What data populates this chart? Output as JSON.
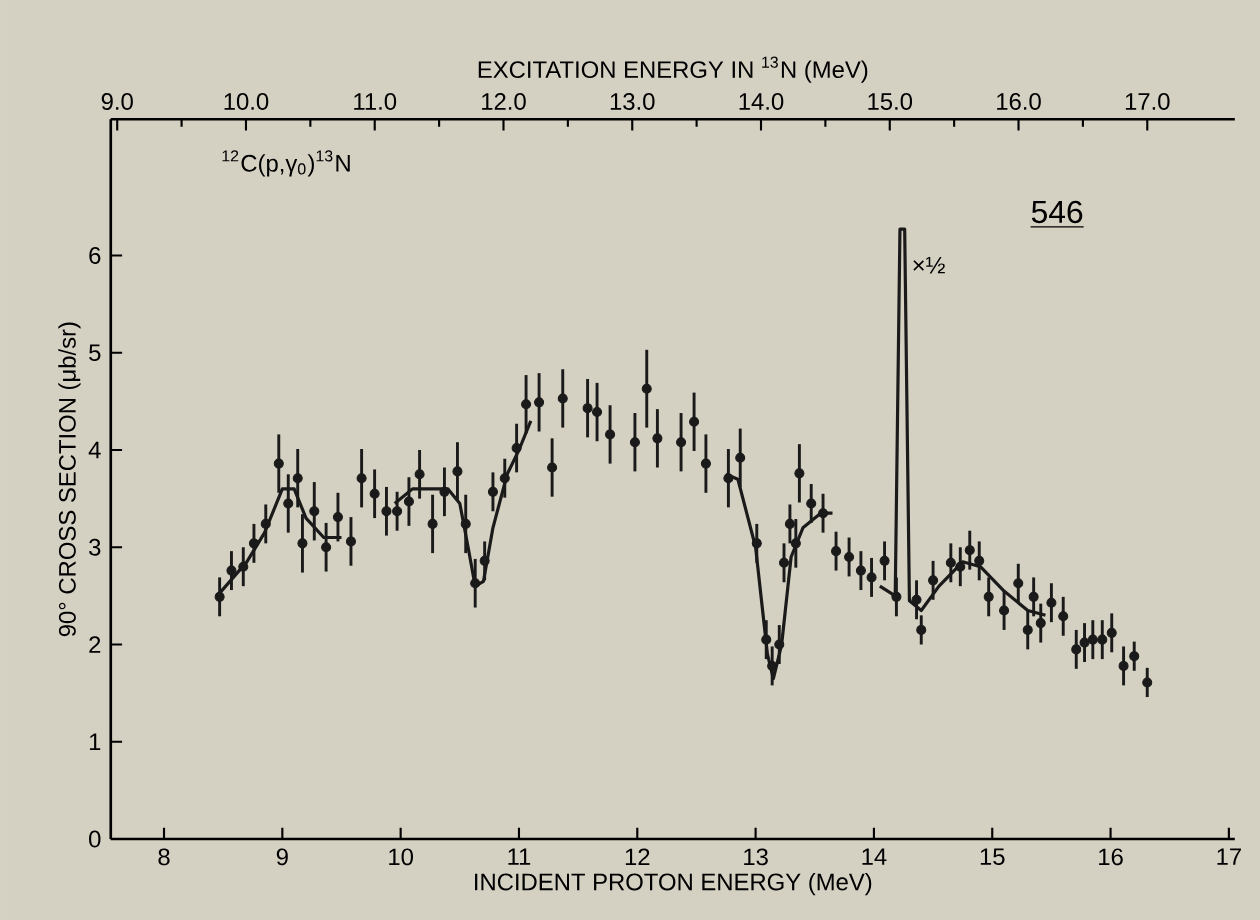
{
  "chart_data": {
    "type": "scatter",
    "xlabel": "INCIDENT PROTON ENERGY (MeV)",
    "ylabel": "90° CROSS SECTION (μb/sr)",
    "x2label": "EXCITATION ENERGY IN $^{13}$N (MeV)",
    "xlim": [
      7.55,
      17.05
    ],
    "xticks": [
      8,
      9,
      10,
      11,
      12,
      13,
      14,
      15,
      16,
      17
    ],
    "ylim": [
      0,
      7.4
    ],
    "yticks": [
      0,
      1,
      2,
      3,
      4,
      5,
      6
    ],
    "x2lim": [
      8.95,
      17.68
    ],
    "x2ticks": [
      {
        "value": 9,
        "label": "9.0"
      },
      {
        "value": 10,
        "label": "10.0"
      },
      {
        "value": 11,
        "label": "11.0"
      },
      {
        "value": 12,
        "label": "12.0"
      },
      {
        "value": 13,
        "label": "13.0"
      },
      {
        "value": 14,
        "label": "14.0"
      },
      {
        "value": 15,
        "label": "15.0"
      },
      {
        "value": 16,
        "label": "16.0"
      },
      {
        "value": 17,
        "label": "17.0"
      }
    ],
    "grid": false,
    "marker": "circle",
    "annotations": [
      "$^{12}$C(p,γ$_{0}$)$^{13}$N",
      "546",
      {
        "text": "×½",
        "x": 14.24,
        "y": 5.9
      }
    ],
    "series": [
      {
        "color": "#1a1a1a",
        "x": [
          8.47,
          8.57,
          8.67,
          8.76,
          8.86,
          8.97,
          9.05,
          9.13,
          9.17,
          9.27,
          9.37,
          9.47,
          9.58,
          9.67,
          9.78,
          9.88,
          9.97,
          10.07,
          10.16,
          10.27,
          10.37,
          10.48,
          10.55,
          10.63,
          10.71,
          10.78,
          10.88,
          10.98,
          11.06,
          11.17,
          11.28,
          11.37,
          11.58,
          11.66,
          11.77,
          11.98,
          12.08,
          12.17,
          12.37,
          12.48,
          12.58,
          12.77,
          12.87,
          13.01,
          13.09,
          13.14,
          13.2,
          13.24,
          13.29,
          13.34,
          13.37,
          13.47,
          13.57,
          13.68,
          13.79,
          13.89,
          13.98,
          14.09,
          14.19,
          14.36,
          14.4,
          14.5,
          14.65,
          14.73,
          14.81,
          14.89,
          14.97,
          15.1,
          15.22,
          15.3,
          15.35,
          15.41,
          15.5,
          15.6,
          15.71,
          15.78,
          15.85,
          15.93,
          16.01,
          16.11,
          16.2,
          16.31
        ],
        "values": [
          2.49,
          2.76,
          2.8,
          3.04,
          3.24,
          3.86,
          3.45,
          3.71,
          3.04,
          3.37,
          3.0,
          3.31,
          3.06,
          3.71,
          3.55,
          3.37,
          3.37,
          3.47,
          3.75,
          3.24,
          3.57,
          3.78,
          3.24,
          2.63,
          2.86,
          3.57,
          3.71,
          4.02,
          4.47,
          4.49,
          3.82,
          4.53,
          4.43,
          4.39,
          4.16,
          4.08,
          4.63,
          4.12,
          4.08,
          4.29,
          3.86,
          3.71,
          3.92,
          3.04,
          2.05,
          1.78,
          2.0,
          2.84,
          3.24,
          3.04,
          3.76,
          3.45,
          3.35,
          2.96,
          2.9,
          2.76,
          2.69,
          2.86,
          2.49,
          2.46,
          2.15,
          2.66,
          2.84,
          2.8,
          2.97,
          2.86,
          2.49,
          2.35,
          2.63,
          2.15,
          2.49,
          2.22,
          2.43,
          2.29,
          1.95,
          2.02,
          2.05,
          2.05,
          2.12,
          1.78,
          1.88,
          1.61
        ],
        "errors": [
          0.2,
          0.2,
          0.2,
          0.2,
          0.2,
          0.3,
          0.3,
          0.3,
          0.3,
          0.3,
          0.25,
          0.25,
          0.25,
          0.3,
          0.25,
          0.25,
          0.2,
          0.25,
          0.25,
          0.3,
          0.25,
          0.3,
          0.3,
          0.25,
          0.2,
          0.2,
          0.2,
          0.25,
          0.3,
          0.3,
          0.3,
          0.3,
          0.3,
          0.3,
          0.3,
          0.3,
          0.4,
          0.3,
          0.3,
          0.3,
          0.3,
          0.3,
          0.3,
          0.2,
          0.2,
          0.2,
          0.2,
          0.2,
          0.2,
          0.25,
          0.3,
          0.2,
          0.2,
          0.2,
          0.2,
          0.2,
          0.2,
          0.2,
          0.2,
          0.2,
          0.15,
          0.2,
          0.2,
          0.2,
          0.2,
          0.2,
          0.2,
          0.2,
          0.2,
          0.2,
          0.2,
          0.2,
          0.2,
          0.2,
          0.2,
          0.2,
          0.2,
          0.2,
          0.2,
          0.2,
          0.15,
          0.15
        ]
      },
      {
        "type": "line",
        "color": "#1a1a1a",
        "line_style": "solid",
        "marker": "none",
        "x": [
          8.45,
          8.7,
          8.85,
          9.0,
          9.1,
          9.2,
          9.35,
          9.5,
          9.75,
          9.95,
          10.1,
          10.4,
          10.5,
          10.57,
          10.63,
          10.7,
          10.78,
          10.9,
          11.0,
          11.1,
          11.9,
          12.75,
          12.85,
          13.0,
          13.1,
          13.15,
          13.22,
          13.3,
          13.4,
          13.55,
          13.65,
          13.85,
          14.05,
          14.18,
          14.22,
          14.26,
          14.3,
          14.4,
          14.55,
          14.75,
          14.9,
          15.1,
          15.3,
          15.45
        ],
        "values": [
          2.5,
          2.85,
          3.15,
          3.6,
          3.6,
          3.3,
          3.1,
          3.1,
          null,
          3.45,
          3.6,
          3.6,
          3.45,
          3.0,
          2.6,
          2.65,
          3.2,
          3.75,
          4.0,
          4.3,
          null,
          3.75,
          3.7,
          3.0,
          1.9,
          1.65,
          2.0,
          2.9,
          3.2,
          3.35,
          3.35,
          null,
          2.6,
          2.5,
          6.27,
          6.27,
          2.45,
          2.35,
          2.6,
          2.85,
          2.8,
          2.55,
          2.35,
          2.3
        ]
      }
    ]
  }
}
